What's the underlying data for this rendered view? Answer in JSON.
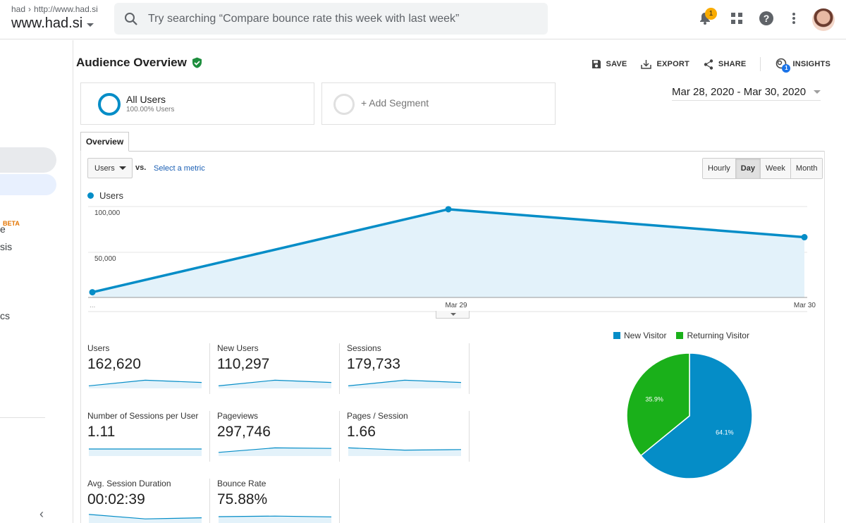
{
  "header": {
    "crumb_account": "had",
    "crumb_property": "http://www.had.si",
    "account_name": "www.had.si",
    "search_placeholder": "Try searching “Compare bounce rate this week with last week”",
    "notification_count": "1"
  },
  "sidebar": {
    "beta_label": "BETA",
    "partial_labels": [
      "e",
      "sis",
      "cs"
    ]
  },
  "page": {
    "title": "Audience Overview",
    "actions": {
      "save": "SAVE",
      "export": "EXPORT",
      "share": "SHARE",
      "insights": "INSIGHTS",
      "insights_badge": "1"
    }
  },
  "segments": {
    "active_name": "All Users",
    "active_sub": "100.00% Users",
    "add_label": "+ Add Segment"
  },
  "date_range": "Mar 28, 2020 - Mar 30, 2020",
  "tabs": {
    "overview": "Overview"
  },
  "controls": {
    "metric_selected": "Users",
    "vs_label": "vs.",
    "select_metric": "Select a metric",
    "granularity": [
      "Hourly",
      "Day",
      "Week",
      "Month"
    ],
    "granularity_active": "Day"
  },
  "chart_data": [
    {
      "type": "area",
      "series": [
        {
          "name": "Users",
          "values": [
            5000,
            97000,
            66000
          ]
        }
      ],
      "x": [
        "...",
        "Mar 29",
        "Mar 30"
      ],
      "ylim": [
        0,
        100000
      ],
      "yticks": [
        "100,000",
        "50,000"
      ],
      "grid": true,
      "color": "#058dc7"
    },
    {
      "type": "pie",
      "categories": [
        "New Visitor",
        "Returning Visitor"
      ],
      "values": [
        64.1,
        35.9
      ],
      "labels": [
        "64.1%",
        "35.9%"
      ],
      "colors": [
        "#058dc7",
        "#1ab01a"
      ],
      "legend": "top"
    }
  ],
  "metrics": [
    {
      "label": "Users",
      "value": "162,620",
      "spark": [
        10,
        60,
        40
      ]
    },
    {
      "label": "New Users",
      "value": "110,297",
      "spark": [
        10,
        60,
        40
      ]
    },
    {
      "label": "Sessions",
      "value": "179,733",
      "spark": [
        10,
        60,
        40
      ]
    },
    {
      "label": "Number of Sessions per User",
      "value": "1.11",
      "spark": [
        50,
        50,
        50
      ]
    },
    {
      "label": "Pageviews",
      "value": "297,746",
      "spark": [
        20,
        60,
        55
      ]
    },
    {
      "label": "Pages / Session",
      "value": "1.66",
      "spark": [
        60,
        40,
        45
      ]
    },
    {
      "label": "Avg. Session Duration",
      "value": "00:02:39",
      "spark": [
        70,
        30,
        40
      ]
    },
    {
      "label": "Bounce Rate",
      "value": "75.88%",
      "spark": [
        50,
        55,
        48
      ]
    }
  ]
}
